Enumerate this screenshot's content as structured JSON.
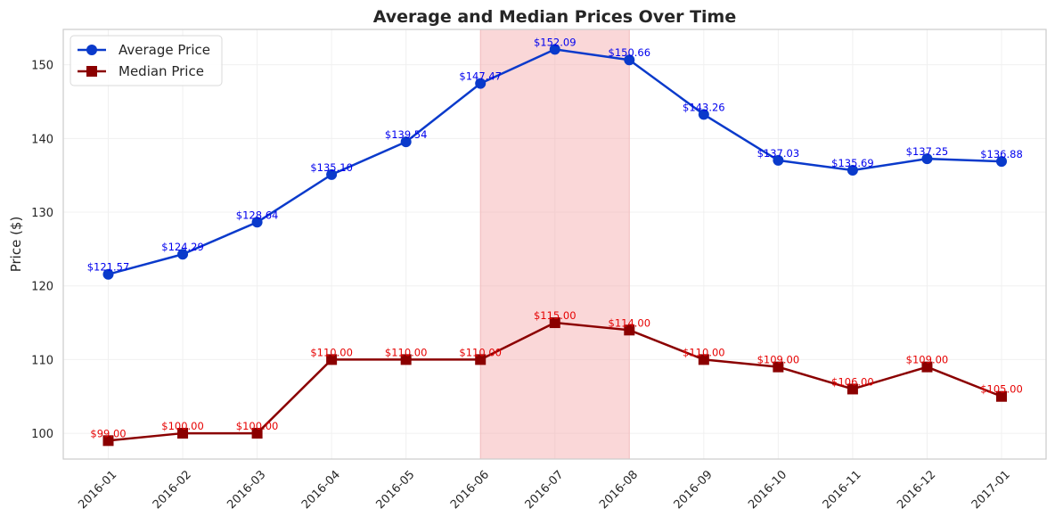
{
  "chart_data": {
    "type": "line",
    "title": "Average and Median Prices Over Time",
    "xlabel": "",
    "ylabel": "Price ($)",
    "categories": [
      "2016-01",
      "2016-02",
      "2016-03",
      "2016-04",
      "2016-05",
      "2016-06",
      "2016-07",
      "2016-08",
      "2016-09",
      "2016-10",
      "2016-11",
      "2016-12",
      "2017-01"
    ],
    "ylim": [
      96.5,
      154.8
    ],
    "yticks": [
      100,
      110,
      120,
      130,
      140,
      150
    ],
    "grid": true,
    "legend_position": "top-left",
    "highlight": {
      "from": "2016-06",
      "to": "2016-08",
      "color": "#f4a6a9"
    },
    "series": [
      {
        "name": "Average Price",
        "color": "#0a3acb",
        "marker": "circle",
        "label_color": "#0000ee",
        "values": [
          121.57,
          124.29,
          128.64,
          135.1,
          139.54,
          147.47,
          152.09,
          150.66,
          143.26,
          137.03,
          135.69,
          137.25,
          136.88
        ],
        "labels": [
          "$121.57",
          "$124.29",
          "$128.64",
          "$135.10",
          "$139.54",
          "$147.47",
          "$152.09",
          "$150.66",
          "$143.26",
          "$137.03",
          "$135.69",
          "$137.25",
          "$136.88"
        ]
      },
      {
        "name": "Median Price",
        "color": "#8b0000",
        "marker": "square",
        "label_color": "#e60000",
        "values": [
          99.0,
          100.0,
          100.0,
          110.0,
          110.0,
          110.0,
          115.0,
          114.0,
          110.0,
          109.0,
          106.0,
          109.0,
          105.0
        ],
        "labels": [
          "$99.00",
          "$100.00",
          "$100.00",
          "$110.00",
          "$110.00",
          "$110.00",
          "$115.00",
          "$114.00",
          "$110.00",
          "$109.00",
          "$106.00",
          "$109.00",
          "$105.00"
        ]
      }
    ]
  }
}
